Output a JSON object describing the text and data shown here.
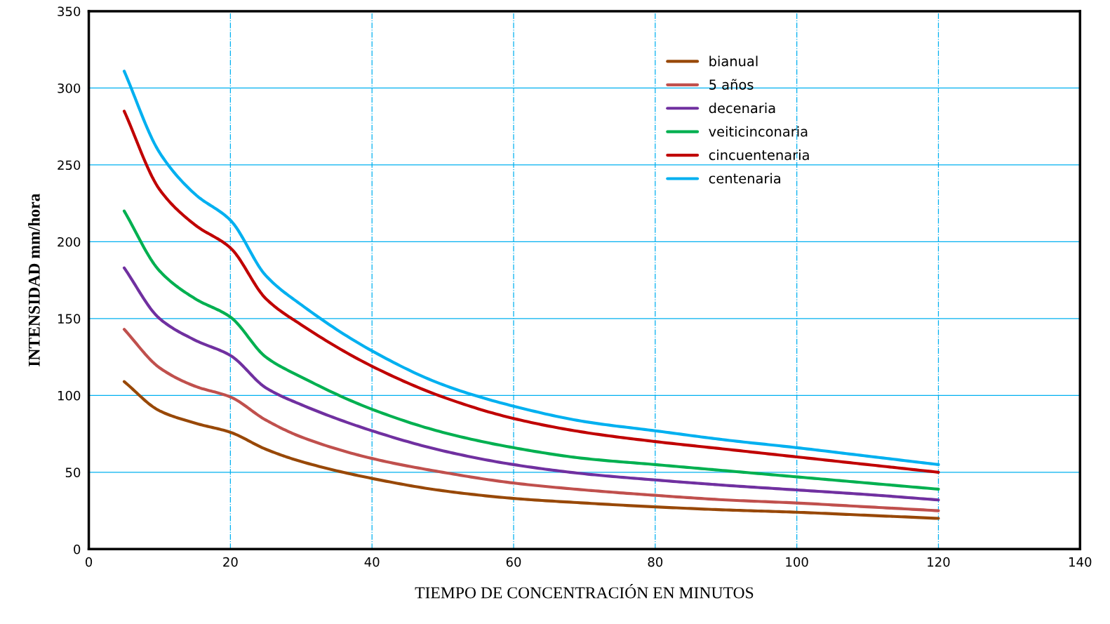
{
  "chart_data": {
    "type": "line",
    "xlabel": "TIEMPO DE CONCENTRACIÓN EN MINUTOS",
    "ylabel": "INTENSIDAD mm/hora",
    "x": [
      5,
      10,
      15,
      20,
      25,
      30,
      40,
      50,
      60,
      70,
      80,
      90,
      100,
      110,
      120
    ],
    "series": [
      {
        "name": "bianual",
        "color": "#984807",
        "values": [
          109,
          90,
          82,
          76,
          65,
          57,
          46,
          38,
          33,
          30,
          27.5,
          25.5,
          24,
          22,
          20
        ]
      },
      {
        "name": "5 años",
        "color": "#c0504d",
        "values": [
          143,
          118,
          106,
          99,
          84,
          73,
          59,
          50,
          43,
          38.5,
          35,
          32,
          30,
          27.5,
          25
        ]
      },
      {
        "name": "decenaria",
        "color": "#7030a0",
        "values": [
          183,
          150,
          136,
          126,
          105,
          94,
          77,
          64,
          55,
          49,
          45,
          41.5,
          38.5,
          35.5,
          32
        ]
      },
      {
        "name": "veiticinconaria",
        "color": "#00b050",
        "values": [
          220,
          181,
          163,
          151,
          125,
          112,
          91,
          76,
          66,
          59,
          55,
          51,
          47,
          43,
          39
        ]
      },
      {
        "name": "cincuentenaria",
        "color": "#c00000",
        "values": [
          285,
          234,
          211,
          196,
          163,
          146,
          119,
          99,
          85,
          76,
          70,
          65,
          60,
          55,
          50
        ]
      },
      {
        "name": "centenaria",
        "color": "#00b0f0",
        "values": [
          311,
          258,
          231,
          214,
          178,
          159,
          129,
          107,
          93,
          83,
          77,
          71,
          66,
          60.5,
          55
        ]
      }
    ],
    "xlim": [
      0,
      140
    ],
    "xticks": [
      0,
      20,
      40,
      60,
      80,
      100,
      120,
      140
    ],
    "ylim": [
      0,
      350
    ],
    "yticks": [
      0,
      50,
      100,
      150,
      200,
      250,
      300,
      350
    ],
    "grid": true,
    "legend": "top right",
    "marker": "none",
    "line_style": "solid"
  }
}
